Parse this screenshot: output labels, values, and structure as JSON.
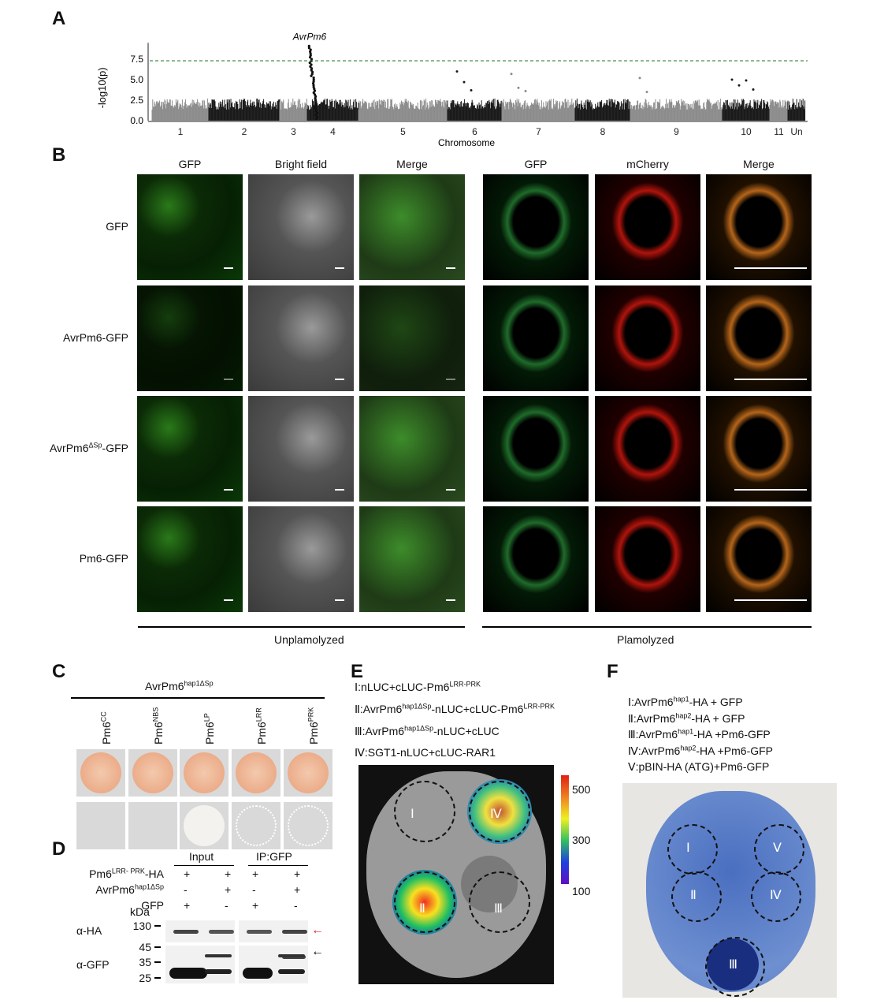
{
  "panels": {
    "a": "A",
    "b": "B",
    "c": "C",
    "d": "D",
    "e": "E",
    "f": "F"
  },
  "chart_data": {
    "type": "scatter",
    "subtype": "manhattan",
    "xlabel": "Chromosome",
    "ylabel": "-log10(p)",
    "yticks": [
      "0.0",
      "2.5",
      "5.0",
      "7.5"
    ],
    "ylim": [
      0,
      9.5
    ],
    "threshold": 7.3,
    "threshold_color": "#2e7d32",
    "categories": [
      "1",
      "2",
      "3",
      "4",
      "5",
      "6",
      "7",
      "8",
      "9",
      "10",
      "11",
      "Un"
    ],
    "series_colors": [
      "#8c8c8c",
      "#1a1a1a"
    ],
    "annotation": {
      "label": "AvrPm6",
      "chromosome": "3/4",
      "value": 9.1
    },
    "background_max": 2.7,
    "outliers": [
      {
        "chromosome": "6",
        "values": [
          6.0,
          4.7,
          3.7
        ]
      },
      {
        "chromosome": "7",
        "values": [
          5.7,
          4.0,
          3.6
        ]
      },
      {
        "chromosome": "9",
        "values": [
          5.2,
          3.5
        ]
      },
      {
        "chromosome": "10",
        "values": [
          5.0,
          4.3,
          4.9,
          3.8
        ]
      }
    ],
    "grid": false
  },
  "b": {
    "left_headers": [
      "GFP",
      "Bright field",
      "Merge"
    ],
    "right_headers": [
      "GFP",
      "mCherry",
      "Merge"
    ],
    "rows": [
      "GFP",
      "AvrPm6-GFP",
      "AvrPm6",
      "-GFP",
      "Pm6-GFP"
    ],
    "row3_sup": "ΔSp",
    "left_group": "Unplamolyzed",
    "right_group": "Plamolyzed"
  },
  "c": {
    "title": "AvrPm6",
    "title_sup": "hap1ΔSp",
    "cols": [
      {
        "b": "Pm6",
        "s": "CC"
      },
      {
        "b": "Pm6",
        "s": "NBS"
      },
      {
        "b": "Pm6",
        "s": "LP"
      },
      {
        "b": "Pm6",
        "s": "LRR"
      },
      {
        "b": "Pm6",
        "s": "PRK"
      }
    ]
  },
  "d": {
    "input": "Input",
    "ip": "IP:GFP",
    "r1": "Pm6",
    "r1s": "LRR- PRK",
    "r1e": "-HA",
    "r2": "AvrPm6",
    "r2s": "hap1ΔSp",
    "r3": "GFP",
    "v1": [
      "+",
      "+",
      "+",
      "+"
    ],
    "v2": [
      "-",
      "+",
      "-",
      "+"
    ],
    "v3": [
      "+",
      "-",
      "+",
      "-"
    ],
    "kda": "kDa",
    "m": [
      "130",
      "45",
      "35",
      "25"
    ],
    "ha": "α-HA",
    "gfp": "α-GFP",
    "arrow_colors": [
      "#e02020",
      "#000000"
    ]
  },
  "e": {
    "items": [
      {
        "n": "Ⅰ",
        "a": ":nLUC+cLUC-Pm6",
        "s": "LRR-PRK",
        "c": ""
      },
      {
        "n": "Ⅱ",
        "a": ":AvrPm6",
        "s": "hap1ΔSp",
        "c": "-nLUC+cLUC-Pm6",
        "s2": "LRR-PRK"
      },
      {
        "n": "Ⅲ",
        "a": ":AvrPm6",
        "s": "hap1ΔSp",
        "c": "-nLUC+cLUC"
      },
      {
        "n": "Ⅳ",
        "a": ":SGT1-nLUC+cLUC-RAR1"
      }
    ],
    "scale": [
      "500",
      "300",
      "100"
    ],
    "circles": [
      "Ⅰ",
      "Ⅱ",
      "Ⅲ",
      "Ⅳ"
    ]
  },
  "f": {
    "items": [
      {
        "n": "Ⅰ",
        "a": ":AvrPm6",
        "s": "hap1",
        "c": "-HA + GFP"
      },
      {
        "n": "Ⅱ",
        "a": ":AvrPm6",
        "s": "hap2",
        "c": "-HA + GFP"
      },
      {
        "n": "Ⅲ",
        "a": ":AvrPm6",
        "s": "hap1",
        "c": "-HA +Pm6-GFP"
      },
      {
        "n": "Ⅳ",
        "a": ":AvrPm6",
        "s": "hap2",
        "c": "-HA +Pm6-GFP"
      },
      {
        "n": "Ⅴ",
        "a": ":pBIN-HA (ATG)+Pm6-GFP"
      }
    ],
    "circles": [
      "Ⅰ",
      "Ⅱ",
      "Ⅲ",
      "Ⅳ",
      "Ⅴ"
    ]
  }
}
